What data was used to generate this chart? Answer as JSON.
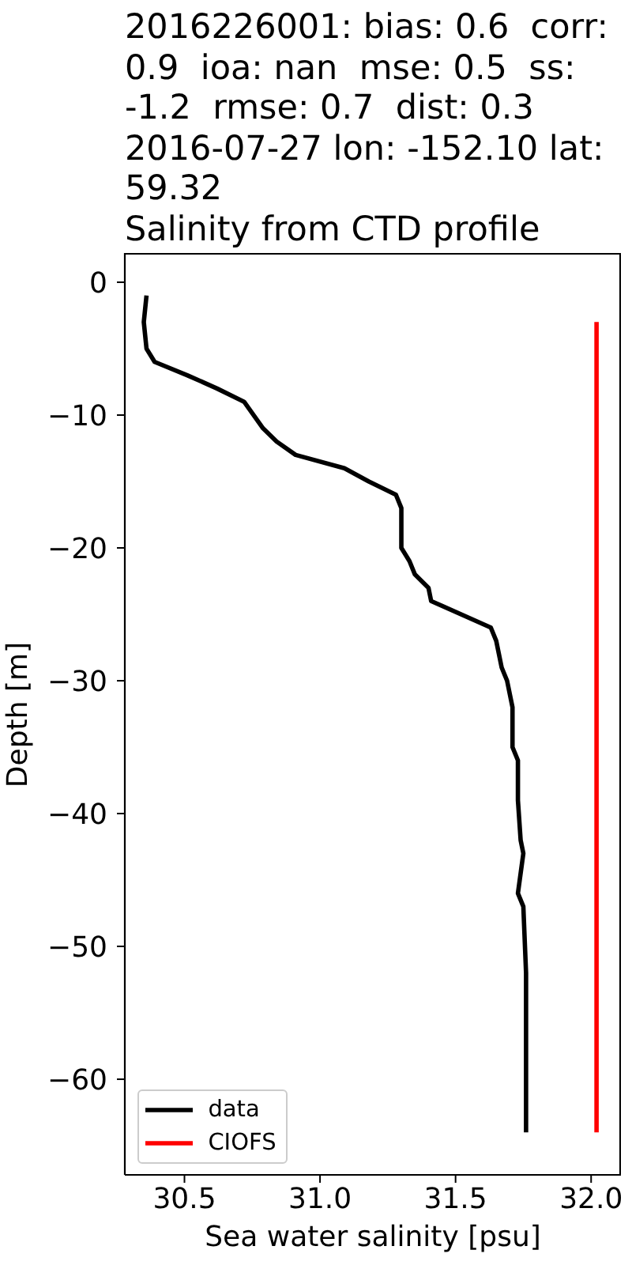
{
  "chart_data": {
    "type": "line",
    "title": "2016226001: bias: 0.6  corr: 0.9  ioa: nan  mse: 0.5  ss: -1.2  rmse: 0.7  dist: 0.3\n2016-07-27 lon: -152.10 lat: 59.32\nSalinity from CTD profile",
    "xlabel": "Sea water salinity [psu]",
    "ylabel": "Depth [m]",
    "xlim": [
      30.28,
      32.11
    ],
    "xticks": [
      30.5,
      {
        "value": 31,
        "label": "31.0"
      },
      31.5,
      {
        "value": 32,
        "label": "32.0"
      }
    ],
    "ylim": [
      -67.2,
      2.2
    ],
    "yticks": [
      -60,
      -50,
      -40,
      -30,
      -20,
      -10,
      0
    ],
    "legend": "bottom left",
    "line_style": "solid",
    "series": [
      {
        "name": "data",
        "color": "#000000",
        "x": [
          30.36,
          30.35,
          30.36,
          30.39,
          30.51,
          30.62,
          30.72,
          30.79,
          30.84,
          30.91,
          31.09,
          31.18,
          31.28,
          31.3,
          31.3,
          31.33,
          31.35,
          31.4,
          31.41,
          31.63,
          31.65,
          31.67,
          31.69,
          31.71,
          31.71,
          31.73,
          31.73,
          31.74,
          31.75,
          31.73,
          31.75,
          31.76,
          31.76,
          31.76
        ],
        "values": [
          -1,
          -3,
          -5,
          -6,
          -7,
          -8,
          -9,
          -11,
          -12,
          -13,
          -14,
          -15,
          -16,
          -17,
          -20,
          -21,
          -22,
          -23,
          -24,
          -26,
          -27,
          -29,
          -30,
          -32,
          -35,
          -36,
          -39,
          -42,
          -43,
          -46,
          -47,
          -52,
          -55,
          -64
        ]
      },
      {
        "name": "CIOFS",
        "color": "#ff0000",
        "x": [
          32.02,
          32.02
        ],
        "values": [
          -3,
          -64
        ]
      }
    ]
  }
}
